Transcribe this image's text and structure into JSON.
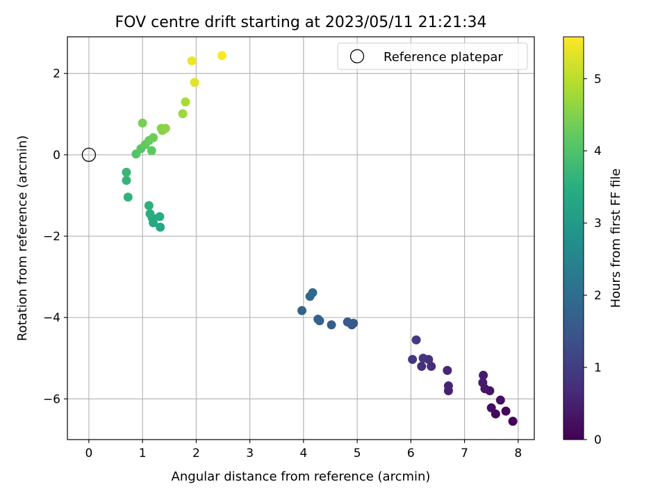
{
  "chart_data": {
    "type": "scatter",
    "title": "FOV centre drift starting at 2023/05/11 21:21:34",
    "xlabel": "Angular distance from reference (arcmin)",
    "ylabel": "Rotation from reference (arcmin)",
    "xlim": [
      -0.4,
      8.3
    ],
    "ylim": [
      -7.0,
      2.9
    ],
    "xticks": [
      0,
      1,
      2,
      3,
      4,
      5,
      6,
      7,
      8
    ],
    "yticks": [
      2,
      0,
      -2,
      -4,
      -6
    ],
    "xtick_labels": [
      "0",
      "1",
      "2",
      "3",
      "4",
      "5",
      "6",
      "7",
      "8"
    ],
    "ytick_labels": [
      "2",
      "0",
      "−2",
      "−4",
      "−6"
    ],
    "grid": true,
    "colormap": "viridis",
    "colorbar": {
      "label": "Hours from first FF file",
      "min": 0,
      "max": 5.58,
      "ticks": [
        0,
        1,
        2,
        3,
        4,
        5
      ],
      "tick_labels": [
        "0",
        "1",
        "2",
        "3",
        "4",
        "5"
      ]
    },
    "legend": {
      "label": "Reference platepar",
      "position": "top-right"
    },
    "reference_point": {
      "x": 0,
      "y": 0
    },
    "points": [
      {
        "x": 7.9,
        "y": -6.55,
        "c": 0.05
      },
      {
        "x": 7.77,
        "y": -6.3,
        "c": 0.1
      },
      {
        "x": 7.58,
        "y": -6.37,
        "c": 0.15
      },
      {
        "x": 7.5,
        "y": -6.22,
        "c": 0.2
      },
      {
        "x": 7.67,
        "y": -6.03,
        "c": 0.25
      },
      {
        "x": 7.47,
        "y": -5.8,
        "c": 0.3
      },
      {
        "x": 7.38,
        "y": -5.75,
        "c": 0.35
      },
      {
        "x": 7.34,
        "y": -5.6,
        "c": 0.4
      },
      {
        "x": 7.35,
        "y": -5.42,
        "c": 0.45
      },
      {
        "x": 6.7,
        "y": -5.8,
        "c": 0.5
      },
      {
        "x": 6.7,
        "y": -5.68,
        "c": 0.55
      },
      {
        "x": 6.68,
        "y": -5.3,
        "c": 0.6
      },
      {
        "x": 6.38,
        "y": -5.2,
        "c": 0.7
      },
      {
        "x": 6.2,
        "y": -5.2,
        "c": 0.75
      },
      {
        "x": 6.33,
        "y": -5.03,
        "c": 0.8
      },
      {
        "x": 6.23,
        "y": -5.0,
        "c": 0.85
      },
      {
        "x": 6.03,
        "y": -5.03,
        "c": 0.9
      },
      {
        "x": 6.1,
        "y": -4.55,
        "c": 0.95
      },
      {
        "x": 4.9,
        "y": -4.18,
        "c": 1.5
      },
      {
        "x": 4.93,
        "y": -4.14,
        "c": 1.55
      },
      {
        "x": 4.82,
        "y": -4.11,
        "c": 1.6
      },
      {
        "x": 4.52,
        "y": -4.18,
        "c": 1.65
      },
      {
        "x": 4.3,
        "y": -4.08,
        "c": 1.7
      },
      {
        "x": 4.27,
        "y": -4.04,
        "c": 1.75
      },
      {
        "x": 3.97,
        "y": -3.83,
        "c": 1.8
      },
      {
        "x": 4.12,
        "y": -3.48,
        "c": 1.85
      },
      {
        "x": 4.17,
        "y": -3.39,
        "c": 1.9
      },
      {
        "x": 1.33,
        "y": -1.78,
        "c": 3.3
      },
      {
        "x": 1.2,
        "y": -1.67,
        "c": 3.35
      },
      {
        "x": 1.18,
        "y": -1.55,
        "c": 3.4
      },
      {
        "x": 1.32,
        "y": -1.52,
        "c": 3.45
      },
      {
        "x": 1.14,
        "y": -1.45,
        "c": 3.5
      },
      {
        "x": 1.12,
        "y": -1.25,
        "c": 3.55
      },
      {
        "x": 0.73,
        "y": -1.04,
        "c": 3.6
      },
      {
        "x": 0.7,
        "y": -0.63,
        "c": 3.65
      },
      {
        "x": 0.7,
        "y": -0.43,
        "c": 3.7
      },
      {
        "x": 0.88,
        "y": 0.02,
        "c": 4.05
      },
      {
        "x": 0.97,
        "y": 0.15,
        "c": 4.1
      },
      {
        "x": 1.17,
        "y": 0.1,
        "c": 4.15
      },
      {
        "x": 1.05,
        "y": 0.25,
        "c": 4.2
      },
      {
        "x": 1.12,
        "y": 0.35,
        "c": 4.25
      },
      {
        "x": 1.2,
        "y": 0.42,
        "c": 4.3
      },
      {
        "x": 1.0,
        "y": 0.78,
        "c": 4.4
      },
      {
        "x": 1.37,
        "y": 0.6,
        "c": 4.5
      },
      {
        "x": 1.35,
        "y": 0.65,
        "c": 4.55
      },
      {
        "x": 1.43,
        "y": 0.65,
        "c": 4.6
      },
      {
        "x": 1.75,
        "y": 1.01,
        "c": 4.75
      },
      {
        "x": 1.8,
        "y": 1.3,
        "c": 4.85
      },
      {
        "x": 1.97,
        "y": 1.78,
        "c": 5.35
      },
      {
        "x": 1.92,
        "y": 2.31,
        "c": 5.45
      },
      {
        "x": 2.48,
        "y": 2.44,
        "c": 5.55
      }
    ]
  }
}
